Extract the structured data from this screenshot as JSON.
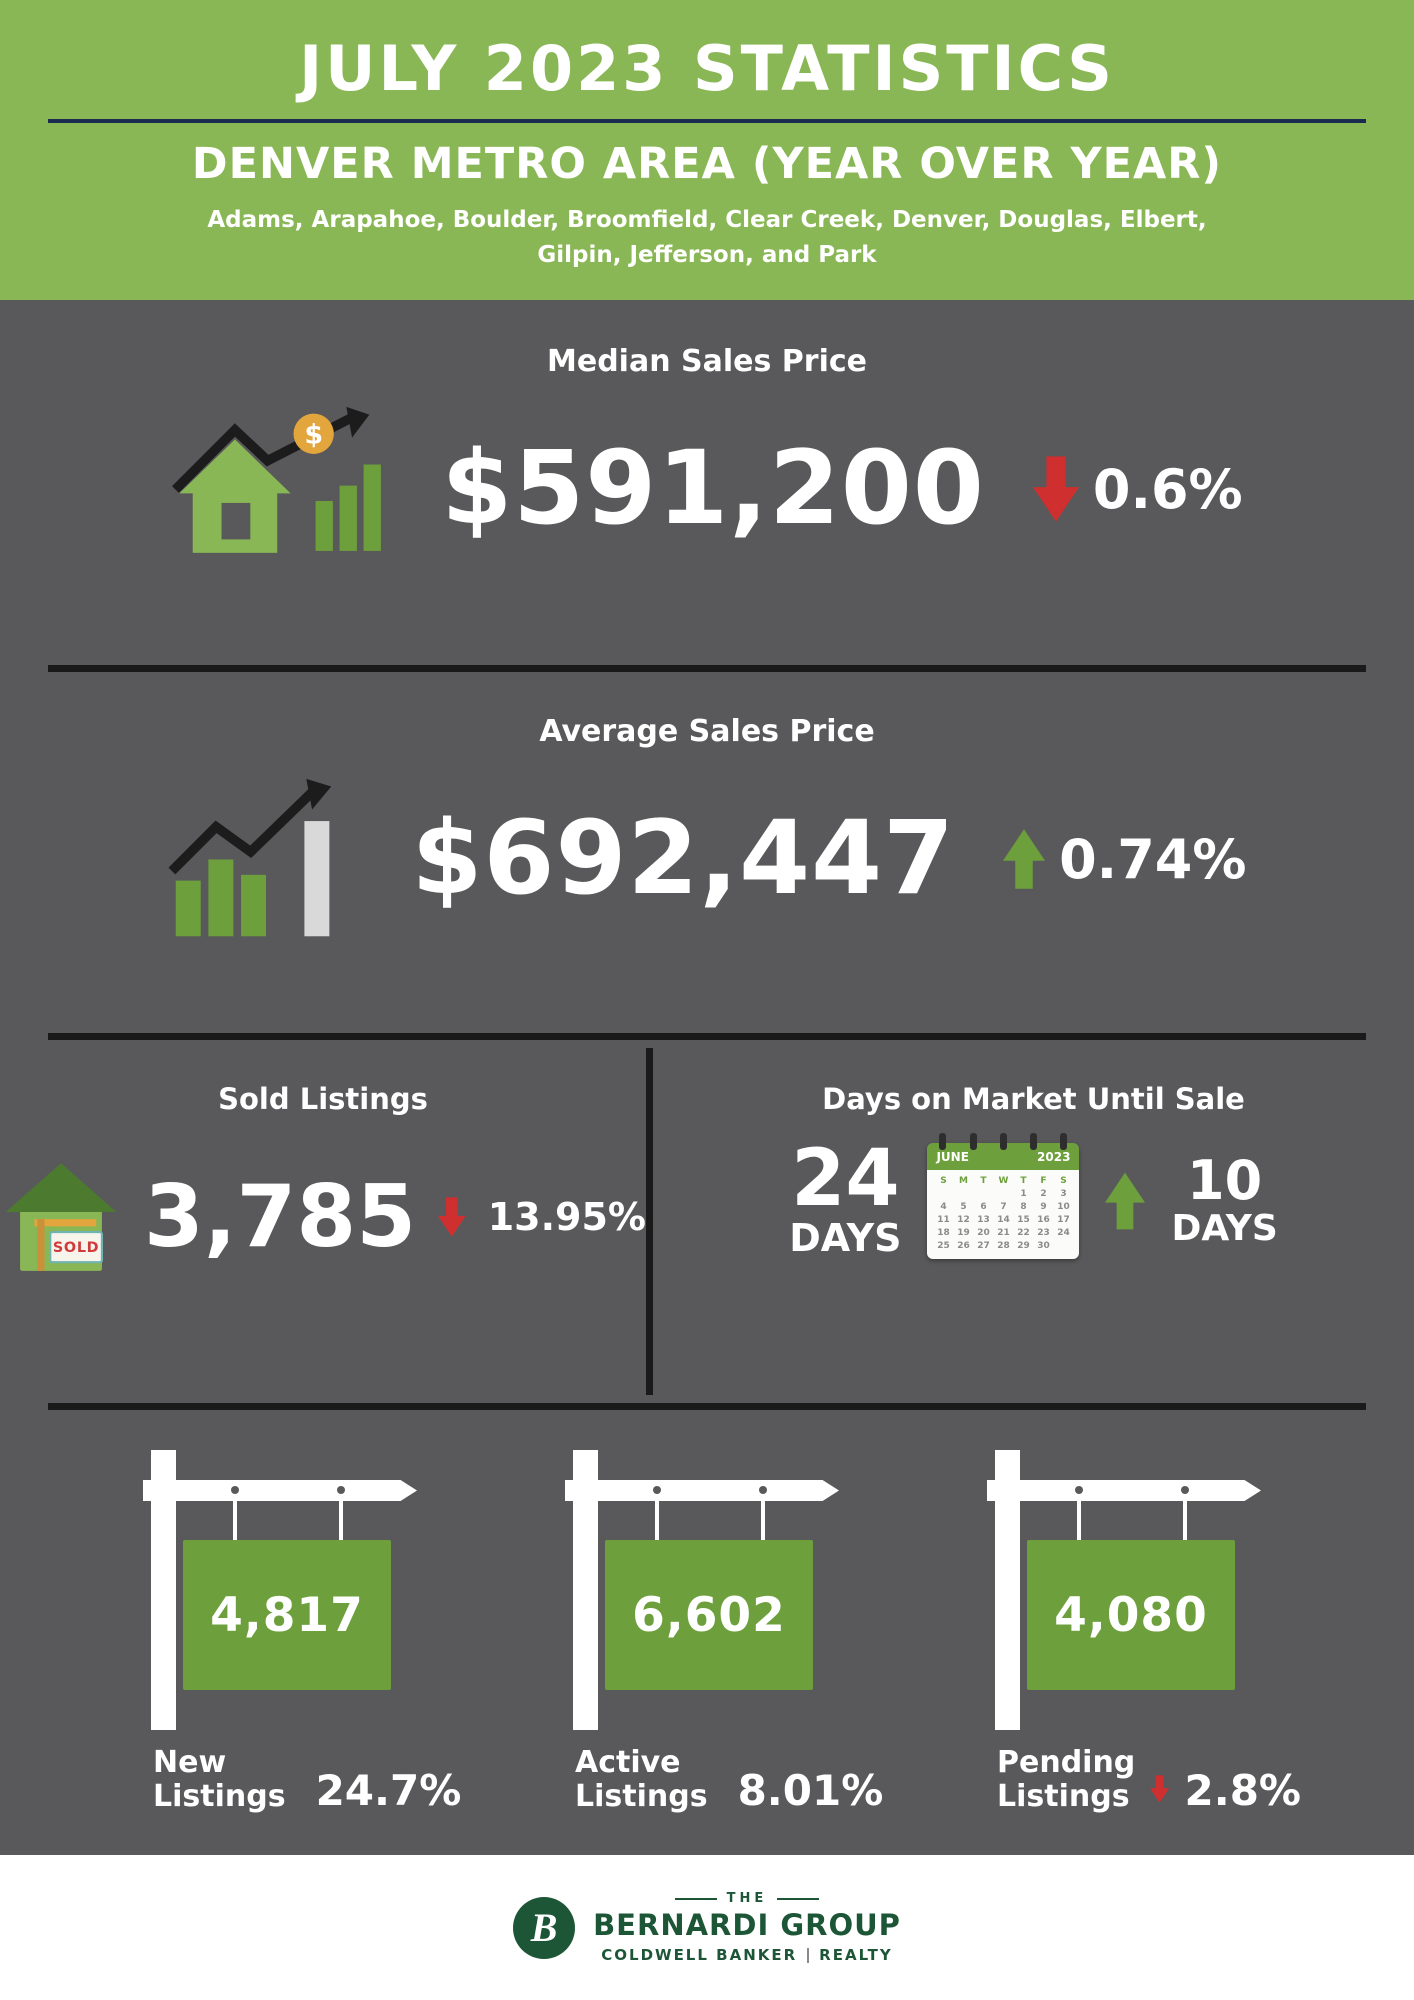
{
  "header": {
    "title": "JULY 2023 STATISTICS",
    "subtitle": "DENVER METRO AREA (YEAR OVER YEAR)",
    "counties_line1": "Adams, Arapahoe, Boulder, Broomfield, Clear Creek, Denver, Douglas, Elbert,",
    "counties_line2": "Gilpin, Jefferson, and Park"
  },
  "median": {
    "label": "Median Sales Price",
    "value": "$591,200",
    "change": "0.6%",
    "direction": "down"
  },
  "average": {
    "label": "Average Sales Price",
    "value": "$692,447",
    "change": "0.74%",
    "direction": "up"
  },
  "sold": {
    "label": "Sold Listings",
    "value": "3,785",
    "change": "13.95%",
    "direction": "down",
    "sign_text": "SOLD"
  },
  "dom": {
    "label": "Days on Market Until Sale",
    "value": "24",
    "unit": "DAYS",
    "change_value": "10",
    "change_unit": "DAYS",
    "direction": "up",
    "calendar": {
      "month": "JUNE",
      "year": "2023",
      "weekdays": [
        "S",
        "M",
        "T",
        "W",
        "T",
        "F",
        "S"
      ],
      "rows": [
        [
          "",
          "",
          "",
          "",
          "1",
          "2",
          "3"
        ],
        [
          "4",
          "5",
          "6",
          "7",
          "8",
          "9",
          "10"
        ],
        [
          "11",
          "12",
          "13",
          "14",
          "15",
          "16",
          "17"
        ],
        [
          "18",
          "19",
          "20",
          "21",
          "22",
          "23",
          "24"
        ],
        [
          "25",
          "26",
          "27",
          "28",
          "29",
          "30",
          ""
        ]
      ]
    }
  },
  "listings": [
    {
      "value": "4,817",
      "label": "New",
      "label2": "Listings",
      "change": "24.7%",
      "direction": "down"
    },
    {
      "value": "6,602",
      "label": "Active",
      "label2": "Listings",
      "change": "8.01%",
      "direction": "down"
    },
    {
      "value": "4,080",
      "label": "Pending",
      "label2": "Listings",
      "change": "2.8%",
      "direction": "down"
    }
  ],
  "footer": {
    "monogram": "B",
    "the": "THE",
    "name": "BERNARDI GROUP",
    "brand": "COLDWELL BANKER",
    "brand2": "REALTY"
  },
  "icons": {
    "dollar": "$"
  },
  "colors": {
    "header_green": "#8ab755",
    "background_gray": "#59595b",
    "accent_green": "#6da03c",
    "dark_green": "#4c7a2f",
    "red": "#cf2f2f",
    "gold": "#e2a63d",
    "navy": "#1b2b4f",
    "footer_green": "#1d5636",
    "divider_black": "#1a1a1a"
  }
}
